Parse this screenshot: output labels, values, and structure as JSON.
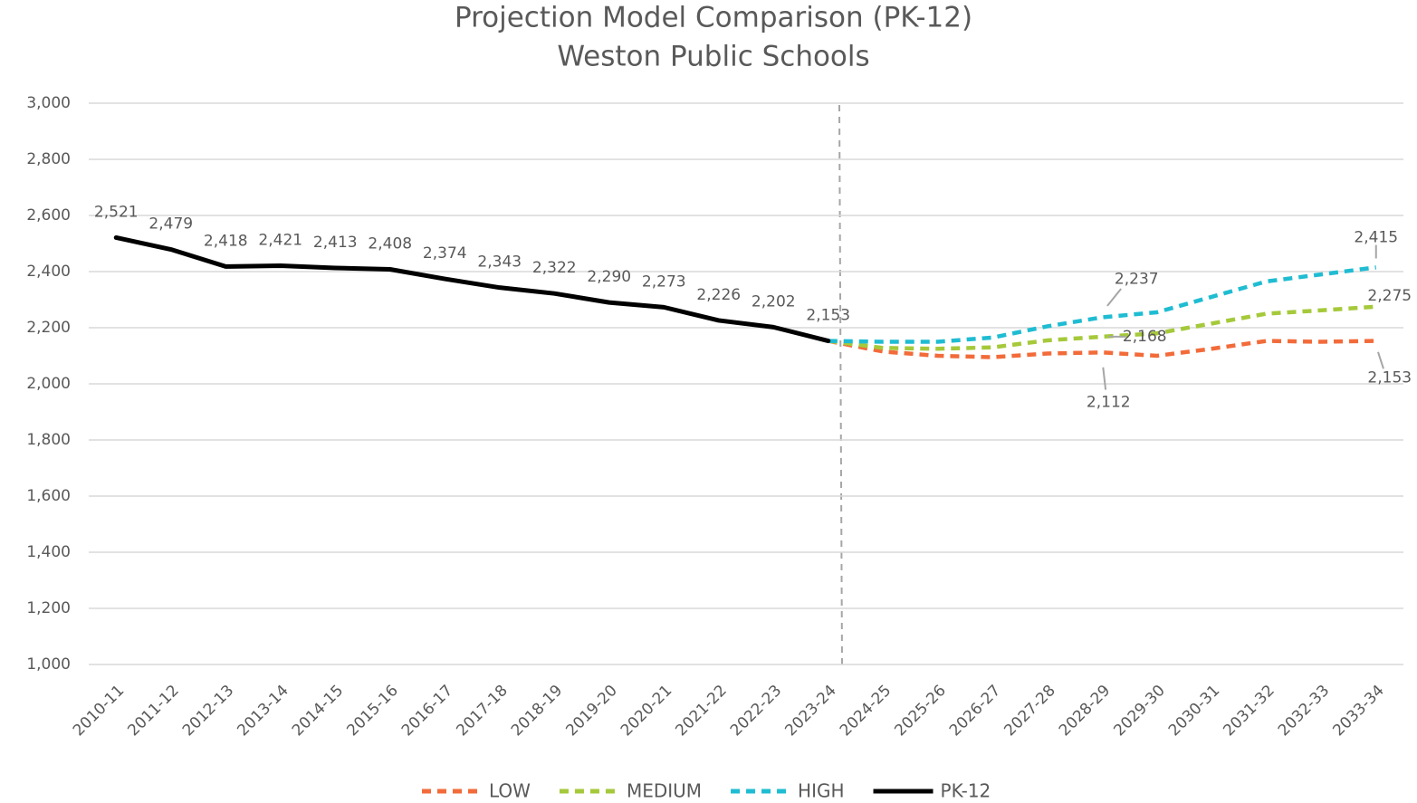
{
  "chart_data": {
    "type": "line",
    "title": "Projection Model Comparison (PK-12)",
    "subtitle": "Weston Public Schools",
    "categories": [
      "2010-11",
      "2011-12",
      "2012-13",
      "2013-14",
      "2014-15",
      "2015-16",
      "2016-17",
      "2017-18",
      "2018-19",
      "2019-20",
      "2020-21",
      "2021-22",
      "2022-23",
      "2023-24",
      "2024-25",
      "2025-26",
      "2026-27",
      "2027-28",
      "2028-29",
      "2029-30",
      "2030-31",
      "2031-32",
      "2032-33",
      "2033-34"
    ],
    "series": [
      {
        "name": "LOW",
        "color": "#f26b3a",
        "dashed": true,
        "values": [
          null,
          null,
          null,
          null,
          null,
          null,
          null,
          null,
          null,
          null,
          null,
          null,
          null,
          2153,
          2115,
          2100,
          2095,
          2108,
          2112,
          2100,
          2125,
          2153,
          2150,
          2153
        ],
        "value_labels": [
          null,
          null,
          null,
          null,
          null,
          null,
          null,
          null,
          null,
          null,
          null,
          null,
          null,
          null,
          null,
          null,
          null,
          null,
          "2,112",
          null,
          null,
          null,
          null,
          "2,153"
        ]
      },
      {
        "name": "MEDIUM",
        "color": "#a5c93a",
        "dashed": true,
        "values": [
          null,
          null,
          null,
          null,
          null,
          null,
          null,
          null,
          null,
          null,
          null,
          null,
          null,
          2153,
          2128,
          2125,
          2130,
          2155,
          2168,
          2180,
          2215,
          2250,
          2262,
          2275
        ],
        "value_labels": [
          null,
          null,
          null,
          null,
          null,
          null,
          null,
          null,
          null,
          null,
          null,
          null,
          null,
          null,
          null,
          null,
          null,
          null,
          "2,168",
          null,
          null,
          null,
          null,
          "2,275"
        ]
      },
      {
        "name": "HIGH",
        "color": "#1fbcd2",
        "dashed": true,
        "values": [
          null,
          null,
          null,
          null,
          null,
          null,
          null,
          null,
          null,
          null,
          null,
          null,
          null,
          2153,
          2150,
          2150,
          2165,
          2205,
          2237,
          2255,
          2310,
          2365,
          2390,
          2415
        ],
        "value_labels": [
          null,
          null,
          null,
          null,
          null,
          null,
          null,
          null,
          null,
          null,
          null,
          null,
          null,
          null,
          null,
          null,
          null,
          null,
          "2,237",
          null,
          null,
          null,
          null,
          "2,415"
        ]
      },
      {
        "name": "PK-12",
        "color": "#000000",
        "dashed": false,
        "values": [
          2521,
          2479,
          2418,
          2421,
          2413,
          2408,
          2374,
          2343,
          2322,
          2290,
          2273,
          2226,
          2202,
          2153,
          null,
          null,
          null,
          null,
          null,
          null,
          null,
          null,
          null,
          null
        ],
        "value_labels": [
          "2,521",
          "2,479",
          "2,418",
          "2,421",
          "2,413",
          "2,408",
          "2,374",
          "2,343",
          "2,322",
          "2,290",
          "2,273",
          "2,226",
          "2,202",
          "2,153",
          null,
          null,
          null,
          null,
          null,
          null,
          null,
          null,
          null,
          null
        ]
      }
    ],
    "ylim": [
      1000,
      3000
    ],
    "yticks": [
      {
        "value": 1000,
        "label": "1,000"
      },
      {
        "value": 1200,
        "label": "1,200"
      },
      {
        "value": 1400,
        "label": "1,400"
      },
      {
        "value": 1600,
        "label": "1,600"
      },
      {
        "value": 1800,
        "label": "1,800"
      },
      {
        "value": 2000,
        "label": "2,000"
      },
      {
        "value": 2200,
        "label": "2,200"
      },
      {
        "value": 2400,
        "label": "2,400"
      },
      {
        "value": 2600,
        "label": "2,600"
      },
      {
        "value": 2800,
        "label": "2,800"
      },
      {
        "value": 3000,
        "label": "3,000"
      }
    ],
    "grid": true,
    "legend": "bottom"
  }
}
